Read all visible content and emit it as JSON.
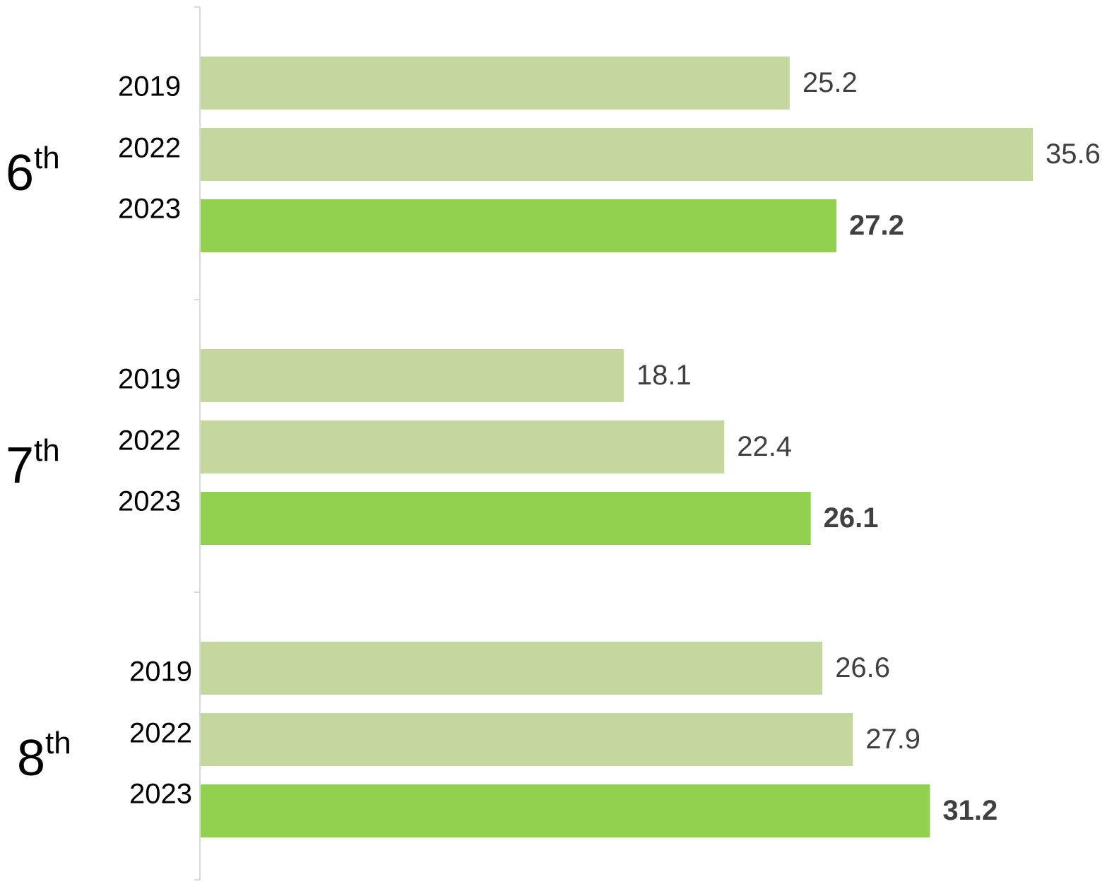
{
  "chart_data": {
    "type": "bar",
    "orientation": "horizontal",
    "categories": [
      "6th",
      "7th",
      "8th"
    ],
    "series": [
      {
        "name": "2019",
        "color": "#c5d79e",
        "values": [
          25.2,
          18.1,
          26.6
        ]
      },
      {
        "name": "2022",
        "color": "#c5d79e",
        "values": [
          35.6,
          22.4,
          27.9
        ]
      },
      {
        "name": "2023",
        "color": "#92d050",
        "values": [
          27.2,
          26.1,
          31.2
        ],
        "bold_labels": true
      }
    ],
    "xlim": [
      0,
      40
    ],
    "grid": false
  }
}
